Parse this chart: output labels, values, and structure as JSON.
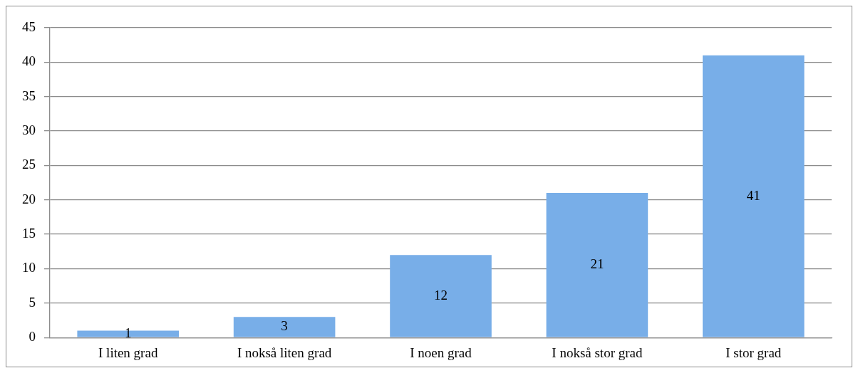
{
  "chart_data": {
    "type": "bar",
    "categories": [
      "I liten grad",
      "I nokså liten grad",
      "I noen grad",
      "I nokså stor grad",
      "I stor grad"
    ],
    "values": [
      1,
      3,
      12,
      21,
      41
    ],
    "color": "#78aee8",
    "ylim": [
      0,
      45
    ],
    "yticks": [
      0,
      5,
      10,
      15,
      20,
      25,
      30,
      35,
      40,
      45
    ],
    "grid": "y",
    "data_labels": true,
    "legend": false
  }
}
